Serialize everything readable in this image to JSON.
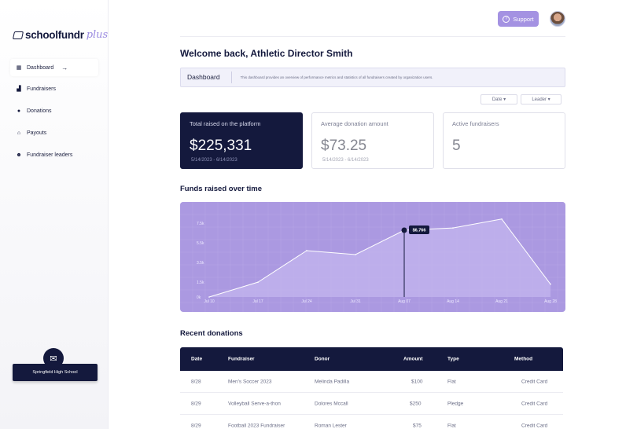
{
  "brand": {
    "name": "schoolfundr",
    "suffix": "plus"
  },
  "sidebar": {
    "items": [
      {
        "label": "Dashboard",
        "icon": "grid-icon",
        "active": true
      },
      {
        "label": "Fundraisers",
        "icon": "chart-icon"
      },
      {
        "label": "Donations",
        "icon": "dollar-icon"
      },
      {
        "label": "Payouts",
        "icon": "bank-icon"
      },
      {
        "label": "Fundraiser leaders",
        "icon": "users-icon"
      }
    ],
    "school": "Springfield High School"
  },
  "header": {
    "support_label": "Support"
  },
  "welcome": "Welcome back, Athletic Director Smith",
  "dashboard_bar": {
    "title": "Dashboard",
    "description": "This dashboard provides an overview of performance metrics and statistics of all fundraisers created by organization users."
  },
  "filters": {
    "date": "Date ▾",
    "leader": "Leader ▾"
  },
  "cards": [
    {
      "label": "Total raised on the platform",
      "value": "$225,331",
      "range": "5/14/2023 - 6/14/2023"
    },
    {
      "label": "Average donation amount",
      "value": "$73.25",
      "range": "5/14/2023 - 6/14/2023"
    },
    {
      "label": "Active fundraisers",
      "value": "5",
      "range": ""
    }
  ],
  "funds_title": "Funds raised over time",
  "chart_data": {
    "type": "area",
    "x": [
      "Jul 10",
      "Jul 17",
      "Jul 24",
      "Jul 31",
      "Aug 07",
      "Aug 14",
      "Aug 21",
      "Aug 28"
    ],
    "y_ticks": [
      "0k",
      "1.5k",
      "3.5k",
      "5.5k",
      "7.5k"
    ],
    "points": [
      {
        "x": 0,
        "y": 0
      },
      {
        "x": 1,
        "y": 1500
      },
      {
        "x": 2,
        "y": 4700
      },
      {
        "x": 3,
        "y": 4300
      },
      {
        "x": 4,
        "y": 6766
      },
      {
        "x": 5,
        "y": 7000
      },
      {
        "x": 6,
        "y": 7900
      },
      {
        "x": 7,
        "y": 1300
      }
    ],
    "highlight": {
      "x": 4,
      "label": "$6,766"
    },
    "grid": true
  },
  "recent_title": "Recent donations",
  "table": {
    "columns": [
      "Date",
      "Fundraiser",
      "Donor",
      "Amount",
      "Type",
      "Method"
    ],
    "rows": [
      [
        "8/28",
        "Men's Soccer 2023",
        "Melinda Padilla",
        "$100",
        "Flat",
        "Credit Card"
      ],
      [
        "8/29",
        "Volleyball Serve-a-thon",
        "Dolores Mccall",
        "$250",
        "Pledge",
        "Credit Card"
      ],
      [
        "8/29",
        "Football 2023 Fundraiser",
        "Roman Lester",
        "$75",
        "Flat",
        "Credit Card"
      ]
    ]
  }
}
